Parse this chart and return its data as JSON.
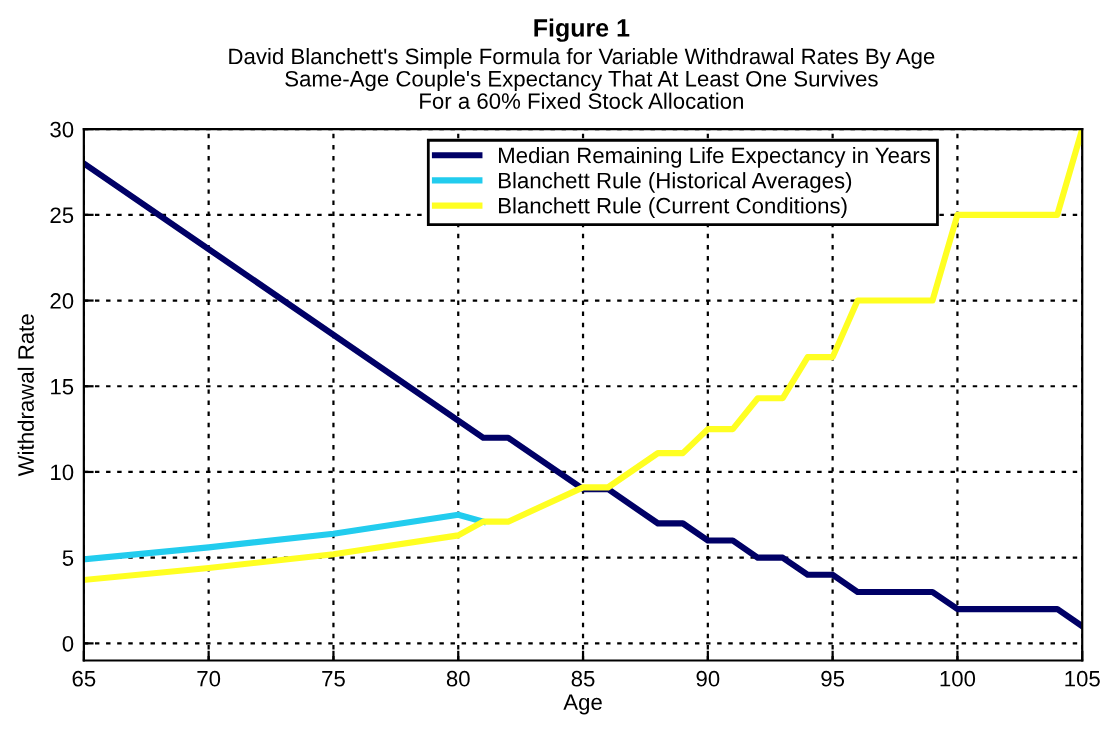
{
  "chart_data": {
    "type": "line",
    "title": "Figure 1",
    "subtitle": "David Blanchett's Simple Formula for Variable Withdrawal Rates By Age\nSame-Age Couple's Expectancy That At Least One Survives\nFor a 60% Fixed Stock Allocation",
    "xlabel": "Age",
    "ylabel": "Withdrawal Rate",
    "series": [
      {
        "name": "Median Remaining Life Expectancy in Years",
        "color": "#000066",
        "x": [
          65,
          81,
          82,
          85,
          86,
          88,
          89,
          90,
          91,
          92,
          93,
          94,
          95,
          96,
          99,
          100,
          104,
          105
        ],
        "values": [
          28,
          12,
          12,
          9,
          9,
          7,
          7,
          6,
          6,
          5,
          5,
          4,
          4,
          3,
          3,
          2,
          2,
          1
        ]
      },
      {
        "name": "Blanchett Rule (Historical Averages)",
        "color": "#22ccee",
        "x": [
          65,
          70,
          75,
          80,
          81
        ],
        "values": [
          4.9,
          5.6,
          6.4,
          7.5,
          7.1
        ]
      },
      {
        "name": "Blanchett Rule (Current Conditions)",
        "color": "#ffff22",
        "x": [
          65,
          70,
          75,
          80,
          81,
          82,
          85,
          86,
          88,
          89,
          90,
          91,
          92,
          93,
          94,
          95,
          96,
          99,
          100,
          104,
          105
        ],
        "values": [
          3.7,
          4.4,
          5.2,
          6.3,
          7.1,
          7.1,
          9.1,
          9.1,
          11.1,
          11.1,
          12.5,
          12.5,
          14.3,
          14.3,
          16.7,
          16.7,
          20,
          20,
          25,
          25,
          30
        ]
      }
    ],
    "xlim": [
      65,
      105
    ],
    "ylim": [
      -1,
      30
    ],
    "xticks": [
      65,
      70,
      75,
      80,
      85,
      90,
      95,
      100,
      105
    ],
    "yticks": [
      0,
      5,
      10,
      15,
      20,
      25,
      30
    ],
    "grid": true,
    "legend": "top",
    "line_style": "solid",
    "marker": "none"
  }
}
